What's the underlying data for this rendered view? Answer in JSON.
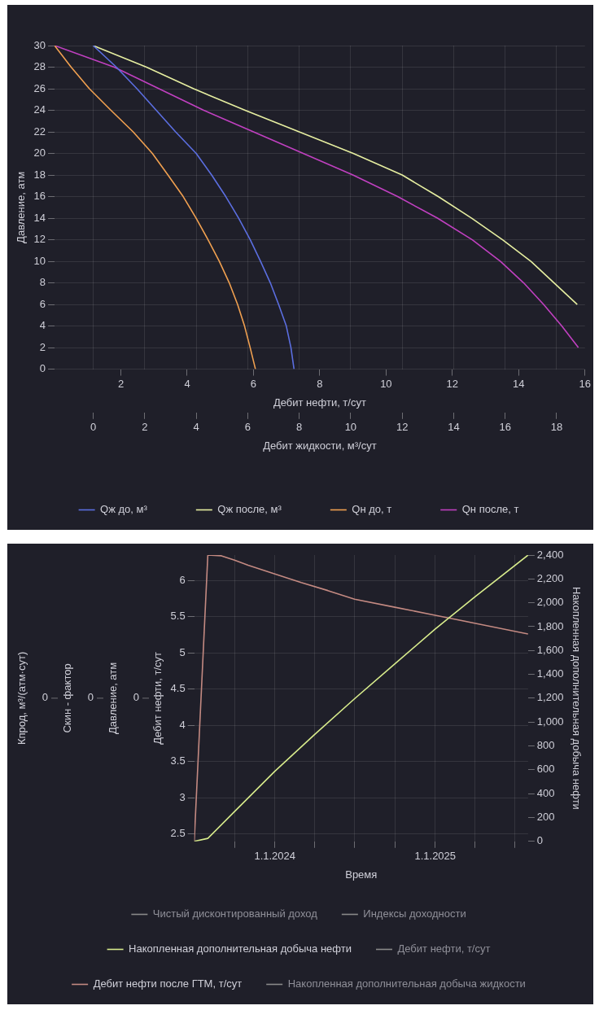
{
  "chart_data": [
    {
      "type": "line",
      "ylabel": "Давление, атм",
      "xlabel": "Дебит нефти, т/сут",
      "x2label": "Дебит жидкости, м³/сут",
      "xlim": [
        0,
        16
      ],
      "xticks": [
        2,
        4,
        6,
        8,
        10,
        12,
        14,
        16
      ],
      "x2lim": [
        -1.5,
        19.1
      ],
      "x2ticks": [
        0,
        2,
        4,
        6,
        8,
        10,
        12,
        14,
        16,
        18
      ],
      "ylim": [
        0,
        30
      ],
      "yticks": [
        0,
        2,
        4,
        6,
        8,
        10,
        12,
        14,
        16,
        18,
        20,
        22,
        24,
        26,
        28,
        30
      ],
      "grid": true,
      "legend": "bottom",
      "series": [
        {
          "name": "Qж до, м³",
          "color": "#5b6ee0",
          "axis": "x2",
          "x": [
            0,
            0.9,
            1.7,
            2.45,
            3.2,
            4.0,
            4.6,
            5.15,
            5.65,
            6.1,
            6.5,
            6.88,
            7.2,
            7.5,
            7.68,
            7.8
          ],
          "values": [
            30,
            28,
            26,
            24,
            22,
            20,
            18,
            16,
            14,
            12,
            10,
            8,
            6,
            4,
            2,
            0
          ]
        },
        {
          "name": "Qж после, м³",
          "color": "#e6eea0",
          "axis": "x2",
          "x": [
            0,
            2.07,
            3.9,
            5.9,
            8.0,
            10.1,
            12.0,
            13.4,
            14.7,
            15.9,
            17.0,
            17.9,
            18.8
          ],
          "values": [
            30,
            28,
            26,
            24,
            22,
            20,
            18,
            16,
            14,
            12,
            10,
            8,
            6
          ]
        },
        {
          "name": "Qн до, т",
          "color": "#f0a050",
          "x": [
            0,
            0.5,
            1.05,
            1.7,
            2.37,
            2.95,
            3.42,
            3.88,
            4.27,
            4.63,
            4.97,
            5.27,
            5.52,
            5.73,
            5.9,
            6.06
          ],
          "values": [
            30,
            28,
            26,
            24,
            22,
            20,
            18,
            16,
            14,
            12,
            10,
            8,
            6,
            4,
            2,
            0
          ]
        },
        {
          "name": "Qн после, т",
          "color": "#c040c0",
          "x": [
            0,
            1.8,
            3.15,
            4.5,
            6.0,
            7.5,
            9.0,
            10.35,
            11.55,
            12.6,
            13.45,
            14.15,
            14.75,
            15.3,
            15.8
          ],
          "values": [
            30,
            28,
            26,
            24,
            22,
            20,
            18,
            16,
            14,
            12,
            10,
            8,
            6,
            4,
            2
          ]
        }
      ]
    },
    {
      "type": "line",
      "xlabel": "Время",
      "ylabel": "Дебит нефти, т/сут",
      "y2label": "Накопленная дополнительная добыча нефти",
      "annotations": [
        "Кпрод, м³/(атм·сут)",
        "0",
        "Скин - фактор",
        "0",
        "Давление, атм",
        "0"
      ],
      "xlim": [
        "2023-07-01",
        "2025-08-01"
      ],
      "xticks": [
        {
          "value": "2023-10-01",
          "label": null
        },
        {
          "value": "2024-01-01",
          "label": "1.1.2024"
        },
        {
          "value": "2024-04-01",
          "label": null
        },
        {
          "value": "2024-07-01",
          "label": null
        },
        {
          "value": "2024-10-01",
          "label": null
        },
        {
          "value": "2025-01-01",
          "label": "1.1.2025"
        },
        {
          "value": "2025-04-01",
          "label": null
        },
        {
          "value": "2025-07-01",
          "label": null
        }
      ],
      "ylim": [
        2.4,
        6.35
      ],
      "yticks": [
        2.5,
        3,
        3.5,
        4,
        4.5,
        5,
        5.5,
        6
      ],
      "y2lim": [
        0,
        2400
      ],
      "y2ticks": [
        0,
        200,
        400,
        600,
        800,
        {
          "value": 1000,
          "label": "1,000"
        },
        {
          "value": 1200,
          "label": "1,200"
        },
        {
          "value": 1400,
          "label": "1,400"
        },
        {
          "value": 1600,
          "label": "1,600"
        },
        {
          "value": 1800,
          "label": "1,800"
        },
        {
          "value": 2000,
          "label": "2,000"
        },
        {
          "value": 2200,
          "label": "2,200"
        },
        {
          "value": 2400,
          "label": "2,400"
        }
      ],
      "grid": true,
      "legend": "bottom",
      "series": [
        {
          "name": "Чистый дисконтированный доход",
          "color": "#8a8a8a"
        },
        {
          "name": "Индексы доходности",
          "color": "#8a8a8a"
        },
        {
          "name": "Накопленная дополнительная добыча нефти",
          "color": "#d8ec8c",
          "axis": "y2",
          "x": [
            "2023-07-01",
            "2023-08-01",
            "2023-10-01",
            "2024-01-01",
            "2024-04-01",
            "2024-07-01",
            "2024-10-01",
            "2025-01-01",
            "2025-04-01",
            "2025-08-01"
          ],
          "values": [
            0,
            25,
            250,
            588,
            896,
            1196,
            1488,
            1780,
            2048,
            2400
          ]
        },
        {
          "name": "Дебит нефти, т/сут",
          "color": "#8a8a8a"
        },
        {
          "name": "Дебит нефти после ГТМ, т/сут",
          "color": "#c48a82",
          "x": [
            "2023-07-01",
            "2023-08-01",
            "2023-09-01",
            "2023-10-01",
            "2023-11-01",
            "2024-01-01",
            "2024-03-01",
            "2024-05-01",
            "2024-07-01",
            "2024-10-01",
            "2025-01-01",
            "2025-04-01",
            "2025-08-01"
          ],
          "values": [
            2.4,
            6.35,
            6.34,
            6.28,
            6.21,
            6.09,
            5.97,
            5.86,
            5.74,
            5.63,
            5.52,
            5.41,
            5.26
          ]
        },
        {
          "name": "Накопленная дополнительная добыча жидкости",
          "color": "#8a8a8a"
        }
      ]
    }
  ]
}
